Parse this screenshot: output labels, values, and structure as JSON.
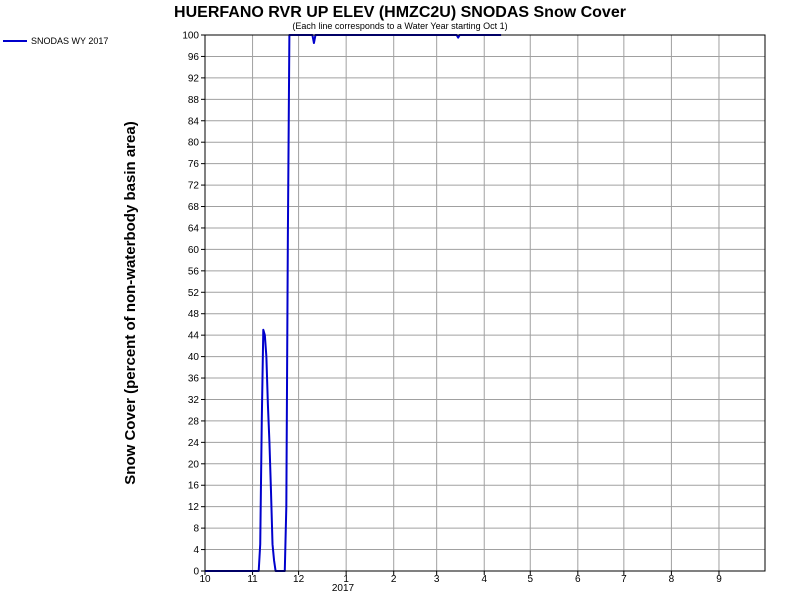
{
  "chart_data": {
    "type": "line",
    "title": "HUERFANO RVR UP ELEV (HMZC2U) SNODAS Snow Cover",
    "subtitle": "(Each line corresponds to a Water Year starting Oct 1)",
    "ylabel": "Snow Cover (percent of non-waterbody basin area)",
    "xlabel": "",
    "ylim": [
      0,
      100
    ],
    "y_ticks": [
      "0",
      "4",
      "8",
      "12",
      "16",
      "20",
      "24",
      "28",
      "32",
      "36",
      "40",
      "44",
      "48",
      "52",
      "56",
      "60",
      "64",
      "68",
      "72",
      "76",
      "80",
      "84",
      "88",
      "92",
      "96",
      "100"
    ],
    "x_tick_labels": [
      "10",
      "11",
      "12",
      "1",
      "2",
      "3",
      "4",
      "5",
      "6",
      "7",
      "8",
      "9"
    ],
    "x_year_label": "2017",
    "grid": true,
    "legend_position": "top-left",
    "line_color": "#0000cc",
    "grid_color": "#a0a0a0",
    "series": [
      {
        "name": "SNODAS WY 2017",
        "points": [
          [
            "2016-10-01",
            0
          ],
          [
            "2016-11-05",
            0
          ],
          [
            "2016-11-06",
            5
          ],
          [
            "2016-11-07",
            28
          ],
          [
            "2016-11-08",
            45
          ],
          [
            "2016-11-09",
            44
          ],
          [
            "2016-11-10",
            40
          ],
          [
            "2016-11-11",
            31
          ],
          [
            "2016-11-12",
            24
          ],
          [
            "2016-11-13",
            15
          ],
          [
            "2016-11-14",
            5
          ],
          [
            "2016-11-15",
            2
          ],
          [
            "2016-11-16",
            0
          ],
          [
            "2016-11-22",
            0
          ],
          [
            "2016-11-23",
            12
          ],
          [
            "2016-11-24",
            62
          ],
          [
            "2016-11-25",
            100
          ],
          [
            "2016-12-10",
            100
          ],
          [
            "2016-12-11",
            98.5
          ],
          [
            "2016-12-12",
            100
          ],
          [
            "2017-03-14",
            100
          ],
          [
            "2017-03-15",
            99.5
          ],
          [
            "2017-03-16",
            100
          ],
          [
            "2017-04-12",
            100
          ]
        ]
      }
    ]
  }
}
